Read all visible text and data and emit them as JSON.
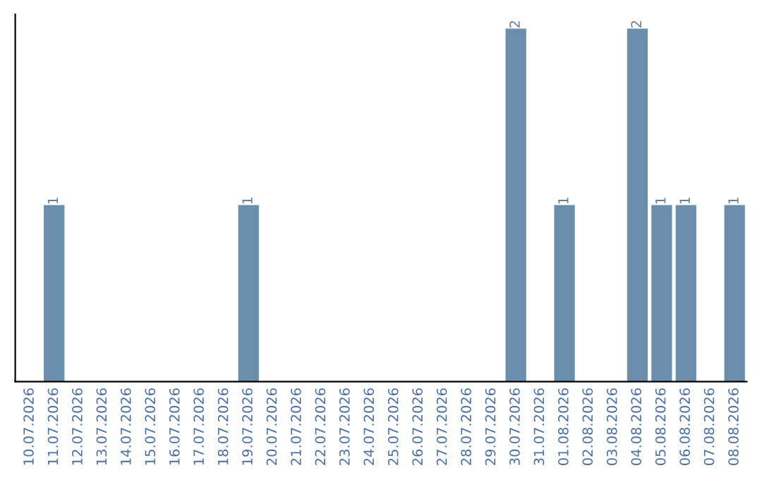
{
  "chart_data": {
    "type": "bar",
    "categories": [
      "10.07.2026",
      "11.07.2026",
      "12.07.2026",
      "13.07.2026",
      "14.07.2026",
      "15.07.2026",
      "16.07.2026",
      "17.07.2026",
      "18.07.2026",
      "19.07.2026",
      "20.07.2026",
      "21.07.2026",
      "22.07.2026",
      "23.07.2026",
      "24.07.2026",
      "25.07.2026",
      "26.07.2026",
      "27.07.2026",
      "28.07.2026",
      "29.07.2026",
      "30.07.2026",
      "31.07.2026",
      "01.08.2026",
      "02.08.2026",
      "03.08.2026",
      "04.08.2026",
      "05.08.2026",
      "06.08.2026",
      "07.08.2026",
      "08.08.2026"
    ],
    "values": [
      0,
      1,
      0,
      0,
      0,
      0,
      0,
      0,
      0,
      1,
      0,
      0,
      0,
      0,
      0,
      0,
      0,
      0,
      0,
      0,
      2,
      0,
      1,
      0,
      0,
      2,
      1,
      1,
      0,
      1
    ],
    "value_labels": [
      null,
      "1",
      null,
      null,
      null,
      null,
      null,
      null,
      null,
      "1",
      null,
      null,
      null,
      null,
      null,
      null,
      null,
      null,
      null,
      null,
      "2",
      null,
      "1",
      null,
      null,
      "2",
      "1",
      "1",
      null,
      "1"
    ],
    "color": "#6c8ead",
    "ylim": [
      0,
      2.08
    ],
    "tick_labels": "x",
    "grid": false
  }
}
